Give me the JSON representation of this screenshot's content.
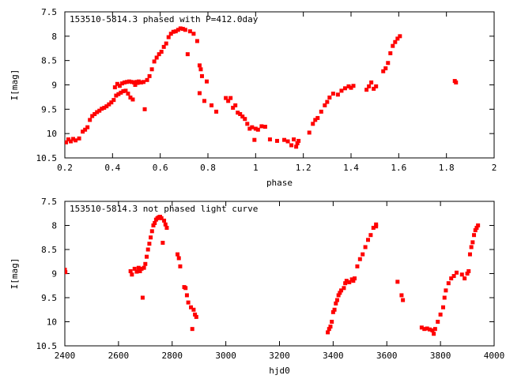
{
  "chart_data": [
    {
      "type": "scatter",
      "title": "153510-5814.3 phased with P=412.0day",
      "xlabel": "phase",
      "ylabel": "I[mag]",
      "xlim": [
        0.2,
        2.0
      ],
      "ylim": [
        10.5,
        7.5
      ],
      "y_inverted": true,
      "grid": false,
      "legend": "none",
      "marker_color": "#ff0000",
      "x_ticks": [
        "0.2",
        "0.4",
        "0.6",
        "0.8",
        "1",
        "1.2",
        "1.4",
        "1.6",
        "1.8",
        "2"
      ],
      "y_ticks": [
        "7.5",
        "8",
        "8.5",
        "9",
        "9.5",
        "10",
        "10.5"
      ],
      "points": [
        [
          0.205,
          10.18
        ],
        [
          0.215,
          10.12
        ],
        [
          0.225,
          10.16
        ],
        [
          0.235,
          10.11
        ],
        [
          0.245,
          10.14
        ],
        [
          0.26,
          10.1
        ],
        [
          0.275,
          9.96
        ],
        [
          0.285,
          9.92
        ],
        [
          0.295,
          9.87
        ],
        [
          0.305,
          9.72
        ],
        [
          0.315,
          9.64
        ],
        [
          0.325,
          9.6
        ],
        [
          0.335,
          9.56
        ],
        [
          0.345,
          9.53
        ],
        [
          0.355,
          9.49
        ],
        [
          0.365,
          9.47
        ],
        [
          0.375,
          9.44
        ],
        [
          0.385,
          9.4
        ],
        [
          0.395,
          9.36
        ],
        [
          0.405,
          9.31
        ],
        [
          0.41,
          9.05
        ],
        [
          0.415,
          9.22
        ],
        [
          0.42,
          8.98
        ],
        [
          0.425,
          9.19
        ],
        [
          0.43,
          9.02
        ],
        [
          0.435,
          9.16
        ],
        [
          0.44,
          8.97
        ],
        [
          0.445,
          9.13
        ],
        [
          0.45,
          8.95
        ],
        [
          0.455,
          9.12
        ],
        [
          0.46,
          8.94
        ],
        [
          0.465,
          9.18
        ],
        [
          0.47,
          8.93
        ],
        [
          0.475,
          9.26
        ],
        [
          0.48,
          8.94
        ],
        [
          0.485,
          9.3
        ],
        [
          0.49,
          8.95
        ],
        [
          0.495,
          9.0
        ],
        [
          0.5,
          8.94
        ],
        [
          0.505,
          8.96
        ],
        [
          0.51,
          8.93
        ],
        [
          0.52,
          8.95
        ],
        [
          0.53,
          8.94
        ],
        [
          0.535,
          9.5
        ],
        [
          0.545,
          8.9
        ],
        [
          0.555,
          8.82
        ],
        [
          0.565,
          8.68
        ],
        [
          0.575,
          8.52
        ],
        [
          0.585,
          8.44
        ],
        [
          0.595,
          8.37
        ],
        [
          0.605,
          8.32
        ],
        [
          0.615,
          8.22
        ],
        [
          0.625,
          8.15
        ],
        [
          0.635,
          8.02
        ],
        [
          0.645,
          7.95
        ],
        [
          0.655,
          7.91
        ],
        [
          0.665,
          7.9
        ],
        [
          0.675,
          7.87
        ],
        [
          0.685,
          7.84
        ],
        [
          0.695,
          7.85
        ],
        [
          0.705,
          7.87
        ],
        [
          0.715,
          8.37
        ],
        [
          0.725,
          7.9
        ],
        [
          0.74,
          7.95
        ],
        [
          0.755,
          8.1
        ],
        [
          0.765,
          8.6
        ],
        [
          0.77,
          8.68
        ],
        [
          0.775,
          8.82
        ],
        [
          0.765,
          9.17
        ],
        [
          0.785,
          9.33
        ],
        [
          0.795,
          8.93
        ],
        [
          0.815,
          9.42
        ],
        [
          0.835,
          9.55
        ],
        [
          0.875,
          9.27
        ],
        [
          0.885,
          9.33
        ],
        [
          0.895,
          9.27
        ],
        [
          0.905,
          9.47
        ],
        [
          0.915,
          9.42
        ],
        [
          0.925,
          9.57
        ],
        [
          0.935,
          9.6
        ],
        [
          0.945,
          9.65
        ],
        [
          0.955,
          9.7
        ],
        [
          0.965,
          9.8
        ],
        [
          0.975,
          9.9
        ],
        [
          0.985,
          9.87
        ],
        [
          0.995,
          10.13
        ],
        [
          1.0,
          9.9
        ],
        [
          1.01,
          9.92
        ],
        [
          1.025,
          9.85
        ],
        [
          1.04,
          9.86
        ],
        [
          1.06,
          10.12
        ],
        [
          1.09,
          10.15
        ],
        [
          1.12,
          10.13
        ],
        [
          1.135,
          10.16
        ],
        [
          1.15,
          10.24
        ],
        [
          1.16,
          10.12
        ],
        [
          1.17,
          10.27
        ],
        [
          1.175,
          10.2
        ],
        [
          1.18,
          10.15
        ],
        [
          1.225,
          9.98
        ],
        [
          1.24,
          9.8
        ],
        [
          1.25,
          9.72
        ],
        [
          1.26,
          9.68
        ],
        [
          1.275,
          9.55
        ],
        [
          1.29,
          9.42
        ],
        [
          1.3,
          9.35
        ],
        [
          1.31,
          9.26
        ],
        [
          1.325,
          9.18
        ],
        [
          1.345,
          9.2
        ],
        [
          1.36,
          9.12
        ],
        [
          1.375,
          9.07
        ],
        [
          1.39,
          9.03
        ],
        [
          1.4,
          9.06
        ],
        [
          1.41,
          9.02
        ],
        [
          1.465,
          9.1
        ],
        [
          1.475,
          9.03
        ],
        [
          1.485,
          8.95
        ],
        [
          1.495,
          9.08
        ],
        [
          1.505,
          9.03
        ],
        [
          1.535,
          8.72
        ],
        [
          1.545,
          8.66
        ],
        [
          1.555,
          8.55
        ],
        [
          1.565,
          8.35
        ],
        [
          1.575,
          8.2
        ],
        [
          1.585,
          8.12
        ],
        [
          1.595,
          8.05
        ],
        [
          1.605,
          8.0
        ],
        [
          1.835,
          8.92
        ],
        [
          1.84,
          8.95
        ]
      ]
    },
    {
      "type": "scatter",
      "title": "153510-5814.3 not phased light curve",
      "xlabel": "hjd0",
      "ylabel": "I[mag]",
      "xlim": [
        2400,
        4000
      ],
      "ylim": [
        10.5,
        7.5
      ],
      "y_inverted": true,
      "grid": false,
      "legend": "none",
      "marker_color": "#ff0000",
      "x_ticks": [
        "2400",
        "2600",
        "2800",
        "3000",
        "3200",
        "3400",
        "3600",
        "3800",
        "4000"
      ],
      "y_ticks": [
        "7.5",
        "8",
        "8.5",
        "9",
        "9.5",
        "10",
        "10.5"
      ],
      "points": [
        [
          2400,
          8.92
        ],
        [
          2402,
          8.97
        ],
        [
          2645,
          8.95
        ],
        [
          2650,
          9.02
        ],
        [
          2660,
          8.9
        ],
        [
          2668,
          8.96
        ],
        [
          2675,
          8.88
        ],
        [
          2680,
          8.95
        ],
        [
          2686,
          8.9
        ],
        [
          2690,
          9.5
        ],
        [
          2695,
          8.88
        ],
        [
          2700,
          8.8
        ],
        [
          2705,
          8.65
        ],
        [
          2710,
          8.5
        ],
        [
          2715,
          8.38
        ],
        [
          2720,
          8.25
        ],
        [
          2725,
          8.12
        ],
        [
          2730,
          8.0
        ],
        [
          2735,
          7.95
        ],
        [
          2740,
          7.88
        ],
        [
          2745,
          7.85
        ],
        [
          2750,
          7.83
        ],
        [
          2755,
          7.82
        ],
        [
          2760,
          7.85
        ],
        [
          2765,
          8.36
        ],
        [
          2770,
          7.9
        ],
        [
          2775,
          7.98
        ],
        [
          2780,
          8.05
        ],
        [
          2820,
          8.6
        ],
        [
          2825,
          8.68
        ],
        [
          2830,
          8.85
        ],
        [
          2845,
          9.28
        ],
        [
          2850,
          9.3
        ],
        [
          2855,
          9.45
        ],
        [
          2860,
          9.6
        ],
        [
          2870,
          9.7
        ],
        [
          2875,
          10.15
        ],
        [
          2880,
          9.75
        ],
        [
          2885,
          9.85
        ],
        [
          2890,
          9.9
        ],
        [
          3380,
          10.22
        ],
        [
          3385,
          10.15
        ],
        [
          3390,
          10.1
        ],
        [
          3395,
          10.0
        ],
        [
          3400,
          9.8
        ],
        [
          3405,
          9.75
        ],
        [
          3410,
          9.62
        ],
        [
          3415,
          9.55
        ],
        [
          3420,
          9.45
        ],
        [
          3425,
          9.4
        ],
        [
          3430,
          9.35
        ],
        [
          3440,
          9.3
        ],
        [
          3445,
          9.2
        ],
        [
          3450,
          9.15
        ],
        [
          3460,
          9.18
        ],
        [
          3470,
          9.12
        ],
        [
          3475,
          9.15
        ],
        [
          3480,
          9.1
        ],
        [
          3490,
          8.85
        ],
        [
          3500,
          8.7
        ],
        [
          3510,
          8.6
        ],
        [
          3520,
          8.45
        ],
        [
          3530,
          8.3
        ],
        [
          3540,
          8.2
        ],
        [
          3550,
          8.05
        ],
        [
          3560,
          7.98
        ],
        [
          3560,
          8.02
        ],
        [
          3640,
          9.17
        ],
        [
          3655,
          9.45
        ],
        [
          3660,
          9.55
        ],
        [
          3730,
          10.12
        ],
        [
          3740,
          10.15
        ],
        [
          3750,
          10.14
        ],
        [
          3760,
          10.16
        ],
        [
          3770,
          10.18
        ],
        [
          3775,
          10.25
        ],
        [
          3780,
          10.15
        ],
        [
          3790,
          10.0
        ],
        [
          3800,
          9.85
        ],
        [
          3810,
          9.7
        ],
        [
          3815,
          9.5
        ],
        [
          3820,
          9.35
        ],
        [
          3830,
          9.2
        ],
        [
          3840,
          9.1
        ],
        [
          3850,
          9.05
        ],
        [
          3860,
          8.98
        ],
        [
          3880,
          9.02
        ],
        [
          3890,
          9.1
        ],
        [
          3900,
          9.0
        ],
        [
          3905,
          8.95
        ],
        [
          3910,
          8.6
        ],
        [
          3915,
          8.45
        ],
        [
          3920,
          8.35
        ],
        [
          3925,
          8.2
        ],
        [
          3930,
          8.1
        ],
        [
          3935,
          8.05
        ],
        [
          3940,
          8.0
        ]
      ]
    }
  ]
}
